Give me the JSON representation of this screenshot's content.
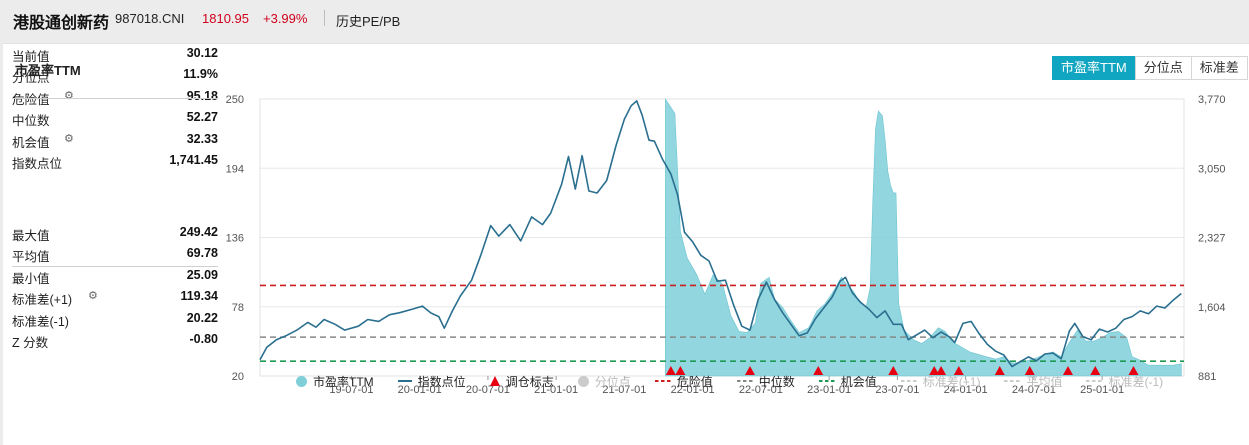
{
  "header": {
    "name": "港股通创新药",
    "code": "987018.CNI",
    "price": "1810.95",
    "change": "+3.99%",
    "link": "历史PE/PB"
  },
  "panel": {
    "title": "市盈率TTM",
    "tabs": [
      {
        "label": "市盈率TTM",
        "active": true
      },
      {
        "label": "分位点",
        "active": false
      },
      {
        "label": "标准差",
        "active": false
      }
    ]
  },
  "stats": {
    "group1": [
      {
        "label": "当前值",
        "value": "30.12",
        "gear": false
      },
      {
        "label": "分位点",
        "value": "11.9%",
        "gear": false
      },
      {
        "label": "危险值",
        "value": "95.18",
        "gear": true
      },
      {
        "label": "中位数",
        "value": "52.27",
        "gear": false
      },
      {
        "label": "机会值",
        "value": "32.33",
        "gear": true
      },
      {
        "label": "指数点位",
        "value": "1,741.45",
        "gear": false
      }
    ],
    "group2": [
      {
        "label": "最大值",
        "value": "249.42",
        "gear": false
      },
      {
        "label": "平均值",
        "value": "69.78",
        "gear": false
      },
      {
        "label": "最小值",
        "value": "25.09",
        "gear": false
      },
      {
        "label": "标准差(+1)",
        "value": "119.34",
        "gear": true
      },
      {
        "label": "标准差(-1)",
        "value": "20.22",
        "gear": false
      },
      {
        "label": "Z 分数",
        "value": "-0.80",
        "gear": false
      }
    ]
  },
  "legend": [
    {
      "label": "市盈率TTM",
      "sym": "dot",
      "color": "#7fcfd9",
      "dim": false
    },
    {
      "label": "指数点位",
      "sym": "line",
      "color": "#2a6f8f",
      "dim": false
    },
    {
      "label": "调仓标志",
      "sym": "tri",
      "color": "#e60012",
      "dim": false
    },
    {
      "label": "分位点",
      "sym": "dot",
      "color": "#cccccc",
      "dim": true
    },
    {
      "label": "危险值",
      "sym": "dash",
      "color": "#cc1f1f",
      "dim": false
    },
    {
      "label": "中位数",
      "sym": "dash",
      "color": "#888888",
      "dim": false
    },
    {
      "label": "机会值",
      "sym": "dash",
      "color": "#1e9a55",
      "dim": false
    },
    {
      "label": "标准差(+1)",
      "sym": "dash",
      "color": "#cccccc",
      "dim": true
    },
    {
      "label": "平均值",
      "sym": "dash",
      "color": "#cccccc",
      "dim": true
    },
    {
      "label": "标准差(-1)",
      "sym": "dash",
      "color": "#cccccc",
      "dim": true
    }
  ],
  "chart_data": {
    "type": "line",
    "x_tick_labels": [
      "19-07-01",
      "20-01-01",
      "20-07-01",
      "21-01-01",
      "21-07-01",
      "22-01-01",
      "22-07-01",
      "23-01-01",
      "23-07-01",
      "24-01-01",
      "24-07-01",
      "25-01-01"
    ],
    "x_range": [
      2018.83,
      2025.6
    ],
    "y_left": {
      "ticks": [
        "250",
        "194",
        "136",
        "78",
        "20"
      ],
      "range": [
        20,
        250
      ]
    },
    "y_right": {
      "ticks": [
        "3,770",
        "3,050",
        "2,327",
        "1,604",
        "881"
      ],
      "range": [
        881,
        3770
      ]
    },
    "reference_lines": {
      "danger": 95.18,
      "median": 52.27,
      "opportunity": 32.33
    },
    "pe_series": [
      [
        2021.8,
        250
      ],
      [
        2021.87,
        238
      ],
      [
        2021.91,
        140
      ],
      [
        2021.96,
        118
      ],
      [
        2022.03,
        104
      ],
      [
        2022.09,
        88
      ],
      [
        2022.15,
        104
      ],
      [
        2022.22,
        96
      ],
      [
        2022.28,
        70
      ],
      [
        2022.34,
        57
      ],
      [
        2022.4,
        56
      ],
      [
        2022.46,
        64
      ],
      [
        2022.5,
        97
      ],
      [
        2022.56,
        102
      ],
      [
        2022.6,
        84
      ],
      [
        2022.66,
        77
      ],
      [
        2022.72,
        66
      ],
      [
        2022.78,
        56
      ],
      [
        2022.85,
        60
      ],
      [
        2022.91,
        74
      ],
      [
        2022.97,
        80
      ],
      [
        2023.03,
        90
      ],
      [
        2023.09,
        102
      ],
      [
        2023.13,
        96
      ],
      [
        2023.18,
        90
      ],
      [
        2023.22,
        82
      ],
      [
        2023.27,
        77
      ],
      [
        2023.3,
        93
      ],
      [
        2023.32,
        165
      ],
      [
        2023.34,
        225
      ],
      [
        2023.36,
        240
      ],
      [
        2023.39,
        236
      ],
      [
        2023.41,
        216
      ],
      [
        2023.43,
        190
      ],
      [
        2023.45,
        178
      ],
      [
        2023.47,
        172
      ],
      [
        2023.49,
        172
      ],
      [
        2023.51,
        80
      ],
      [
        2023.55,
        58
      ],
      [
        2023.62,
        50
      ],
      [
        2023.68,
        47
      ],
      [
        2023.74,
        52
      ],
      [
        2023.8,
        60
      ],
      [
        2023.85,
        57
      ],
      [
        2023.91,
        48
      ],
      [
        2023.97,
        44
      ],
      [
        2024.03,
        40
      ],
      [
        2024.09,
        38
      ],
      [
        2024.15,
        36
      ],
      [
        2024.22,
        34
      ],
      [
        2024.28,
        36
      ],
      [
        2024.34,
        31
      ],
      [
        2024.4,
        31
      ],
      [
        2024.46,
        33
      ],
      [
        2024.52,
        35
      ],
      [
        2024.58,
        38
      ],
      [
        2024.64,
        40
      ],
      [
        2024.7,
        36
      ],
      [
        2024.76,
        48
      ],
      [
        2024.82,
        58
      ],
      [
        2024.88,
        49
      ],
      [
        2024.94,
        49
      ],
      [
        2025.0,
        52
      ],
      [
        2025.06,
        56
      ],
      [
        2025.12,
        57
      ],
      [
        2025.18,
        52
      ],
      [
        2025.22,
        36
      ],
      [
        2025.28,
        33
      ],
      [
        2025.34,
        29
      ],
      [
        2025.4,
        29
      ],
      [
        2025.46,
        29
      ],
      [
        2025.52,
        29
      ],
      [
        2025.58,
        30.12
      ]
    ],
    "index_series": [
      [
        2018.83,
        1050
      ],
      [
        2018.88,
        1180
      ],
      [
        2018.95,
        1260
      ],
      [
        2019.02,
        1300
      ],
      [
        2019.1,
        1360
      ],
      [
        2019.18,
        1440
      ],
      [
        2019.24,
        1390
      ],
      [
        2019.3,
        1470
      ],
      [
        2019.38,
        1420
      ],
      [
        2019.45,
        1360
      ],
      [
        2019.55,
        1400
      ],
      [
        2019.62,
        1470
      ],
      [
        2019.7,
        1450
      ],
      [
        2019.78,
        1520
      ],
      [
        2019.85,
        1540
      ],
      [
        2019.95,
        1580
      ],
      [
        2020.02,
        1610
      ],
      [
        2020.08,
        1540
      ],
      [
        2020.14,
        1500
      ],
      [
        2020.18,
        1380
      ],
      [
        2020.24,
        1560
      ],
      [
        2020.3,
        1720
      ],
      [
        2020.38,
        1880
      ],
      [
        2020.45,
        2150
      ],
      [
        2020.52,
        2450
      ],
      [
        2020.58,
        2340
      ],
      [
        2020.66,
        2460
      ],
      [
        2020.74,
        2290
      ],
      [
        2020.82,
        2540
      ],
      [
        2020.9,
        2460
      ],
      [
        2020.96,
        2580
      ],
      [
        2021.04,
        2880
      ],
      [
        2021.09,
        3170
      ],
      [
        2021.14,
        2830
      ],
      [
        2021.19,
        3180
      ],
      [
        2021.24,
        2810
      ],
      [
        2021.3,
        2790
      ],
      [
        2021.37,
        2920
      ],
      [
        2021.44,
        3290
      ],
      [
        2021.5,
        3560
      ],
      [
        2021.55,
        3700
      ],
      [
        2021.59,
        3750
      ],
      [
        2021.63,
        3600
      ],
      [
        2021.68,
        3340
      ],
      [
        2021.72,
        3330
      ],
      [
        2021.78,
        3140
      ],
      [
        2021.84,
        2990
      ],
      [
        2021.89,
        2770
      ],
      [
        2021.94,
        2380
      ],
      [
        2022.0,
        2280
      ],
      [
        2022.06,
        2140
      ],
      [
        2022.12,
        2080
      ],
      [
        2022.18,
        1870
      ],
      [
        2022.24,
        1880
      ],
      [
        2022.3,
        1620
      ],
      [
        2022.36,
        1400
      ],
      [
        2022.42,
        1360
      ],
      [
        2022.48,
        1680
      ],
      [
        2022.54,
        1860
      ],
      [
        2022.6,
        1680
      ],
      [
        2022.66,
        1540
      ],
      [
        2022.72,
        1420
      ],
      [
        2022.78,
        1300
      ],
      [
        2022.84,
        1330
      ],
      [
        2022.9,
        1480
      ],
      [
        2022.96,
        1590
      ],
      [
        2023.02,
        1700
      ],
      [
        2023.08,
        1870
      ],
      [
        2023.12,
        1910
      ],
      [
        2023.17,
        1750
      ],
      [
        2023.23,
        1650
      ],
      [
        2023.29,
        1580
      ],
      [
        2023.35,
        1490
      ],
      [
        2023.41,
        1560
      ],
      [
        2023.47,
        1420
      ],
      [
        2023.53,
        1420
      ],
      [
        2023.58,
        1260
      ],
      [
        2023.64,
        1310
      ],
      [
        2023.7,
        1360
      ],
      [
        2023.76,
        1280
      ],
      [
        2023.82,
        1340
      ],
      [
        2023.88,
        1290
      ],
      [
        2023.92,
        1230
      ],
      [
        2023.98,
        1430
      ],
      [
        2024.04,
        1450
      ],
      [
        2024.1,
        1320
      ],
      [
        2024.16,
        1210
      ],
      [
        2024.22,
        1140
      ],
      [
        2024.28,
        1100
      ],
      [
        2024.34,
        980
      ],
      [
        2024.4,
        1030
      ],
      [
        2024.46,
        1080
      ],
      [
        2024.52,
        1040
      ],
      [
        2024.58,
        1110
      ],
      [
        2024.64,
        1120
      ],
      [
        2024.7,
        1060
      ],
      [
        2024.76,
        1350
      ],
      [
        2024.8,
        1430
      ],
      [
        2024.86,
        1290
      ],
      [
        2024.92,
        1260
      ],
      [
        2024.98,
        1370
      ],
      [
        2025.04,
        1340
      ],
      [
        2025.1,
        1380
      ],
      [
        2025.16,
        1470
      ],
      [
        2025.22,
        1500
      ],
      [
        2025.28,
        1560
      ],
      [
        2025.34,
        1530
      ],
      [
        2025.4,
        1610
      ],
      [
        2025.46,
        1590
      ],
      [
        2025.52,
        1670
      ],
      [
        2025.58,
        1741.45
      ]
    ],
    "rebalance_markers": [
      2021.84,
      2021.91,
      2022.42,
      2022.92,
      2023.47,
      2023.77,
      2023.82,
      2023.95,
      2024.25,
      2024.47,
      2024.75,
      2024.95,
      2025.23
    ]
  }
}
